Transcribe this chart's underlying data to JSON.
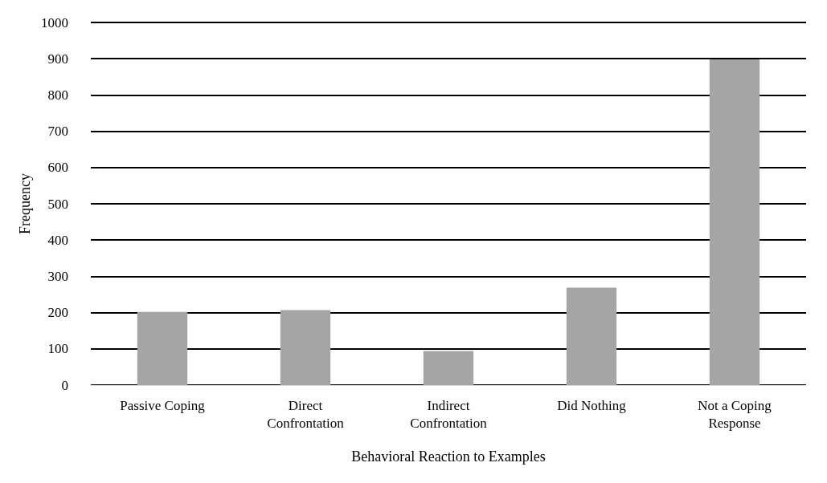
{
  "chart_data": {
    "type": "bar",
    "xlabel": "Behavioral Reaction to Examples",
    "ylabel": "Frequency",
    "categories": [
      "Passive Coping",
      "Direct\nConfrontation",
      "Indirect\nConfrontation",
      "Did Nothing",
      "Not a Coping\nResponse"
    ],
    "values": [
      202,
      207,
      94,
      269,
      898
    ],
    "color": "#a5a5a5",
    "ylim": [
      0,
      1000
    ],
    "yticks": [
      0,
      100,
      200,
      300,
      400,
      500,
      600,
      700,
      800,
      900,
      1000
    ],
    "grid": "y"
  }
}
